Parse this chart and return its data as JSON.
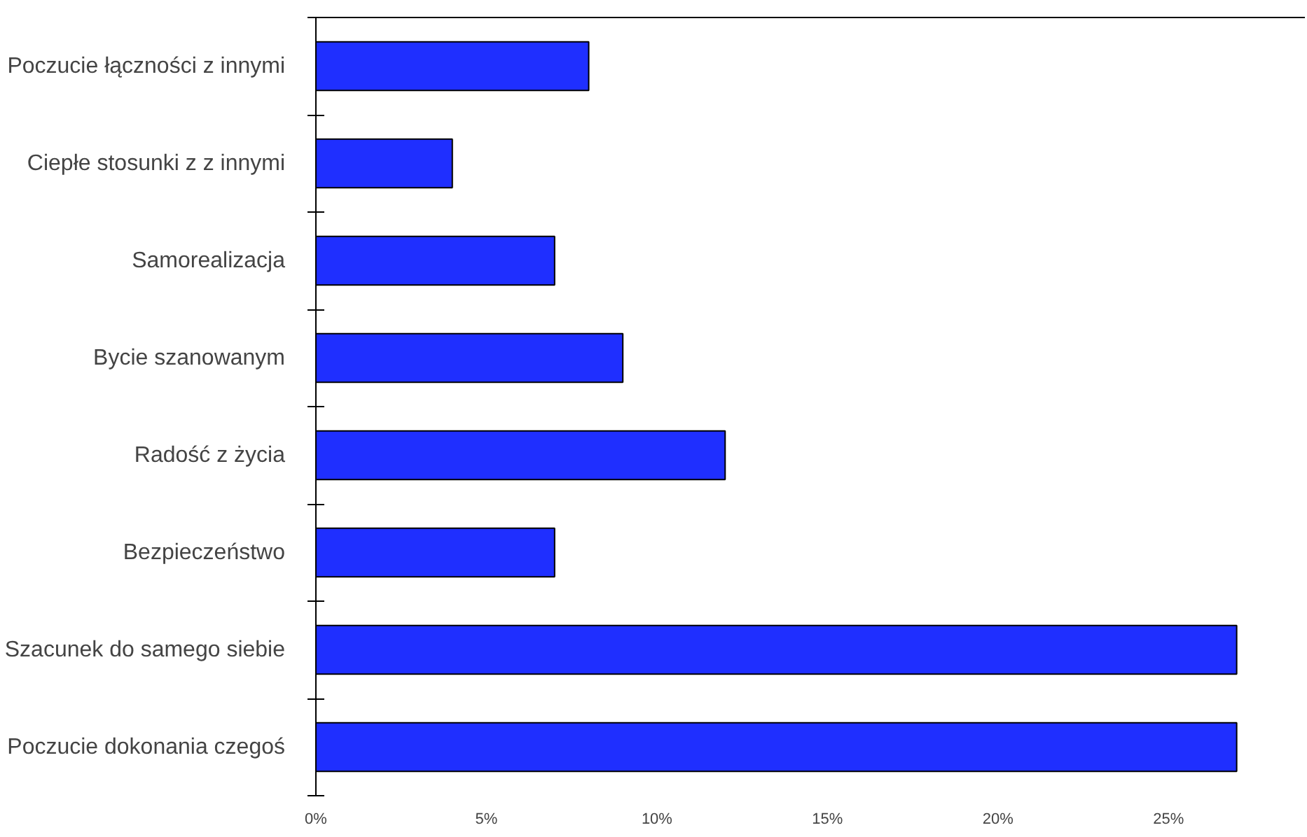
{
  "chart_data": {
    "type": "bar",
    "orientation": "horizontal",
    "categories": [
      "Poczucie łączności z innymi",
      "Ciepłe stosunki z z innymi",
      "Samorealizacja",
      "Bycie szanowanym",
      "Radość z życia",
      "Bezpieczeństwo",
      "Szacunek do samego siebie",
      "Poczucie dokonania czegoś"
    ],
    "values": [
      8,
      4,
      7,
      9,
      12,
      7,
      27,
      27
    ],
    "color": "#1f2fff",
    "xlim": [
      0,
      29
    ],
    "xticks": [
      {
        "value": 0,
        "label": "0%"
      },
      {
        "value": 5,
        "label": "5%"
      },
      {
        "value": 10,
        "label": "10%"
      },
      {
        "value": 15,
        "label": "15%"
      },
      {
        "value": 20,
        "label": "20%"
      },
      {
        "value": 25,
        "label": "25%"
      }
    ],
    "grid": false
  }
}
